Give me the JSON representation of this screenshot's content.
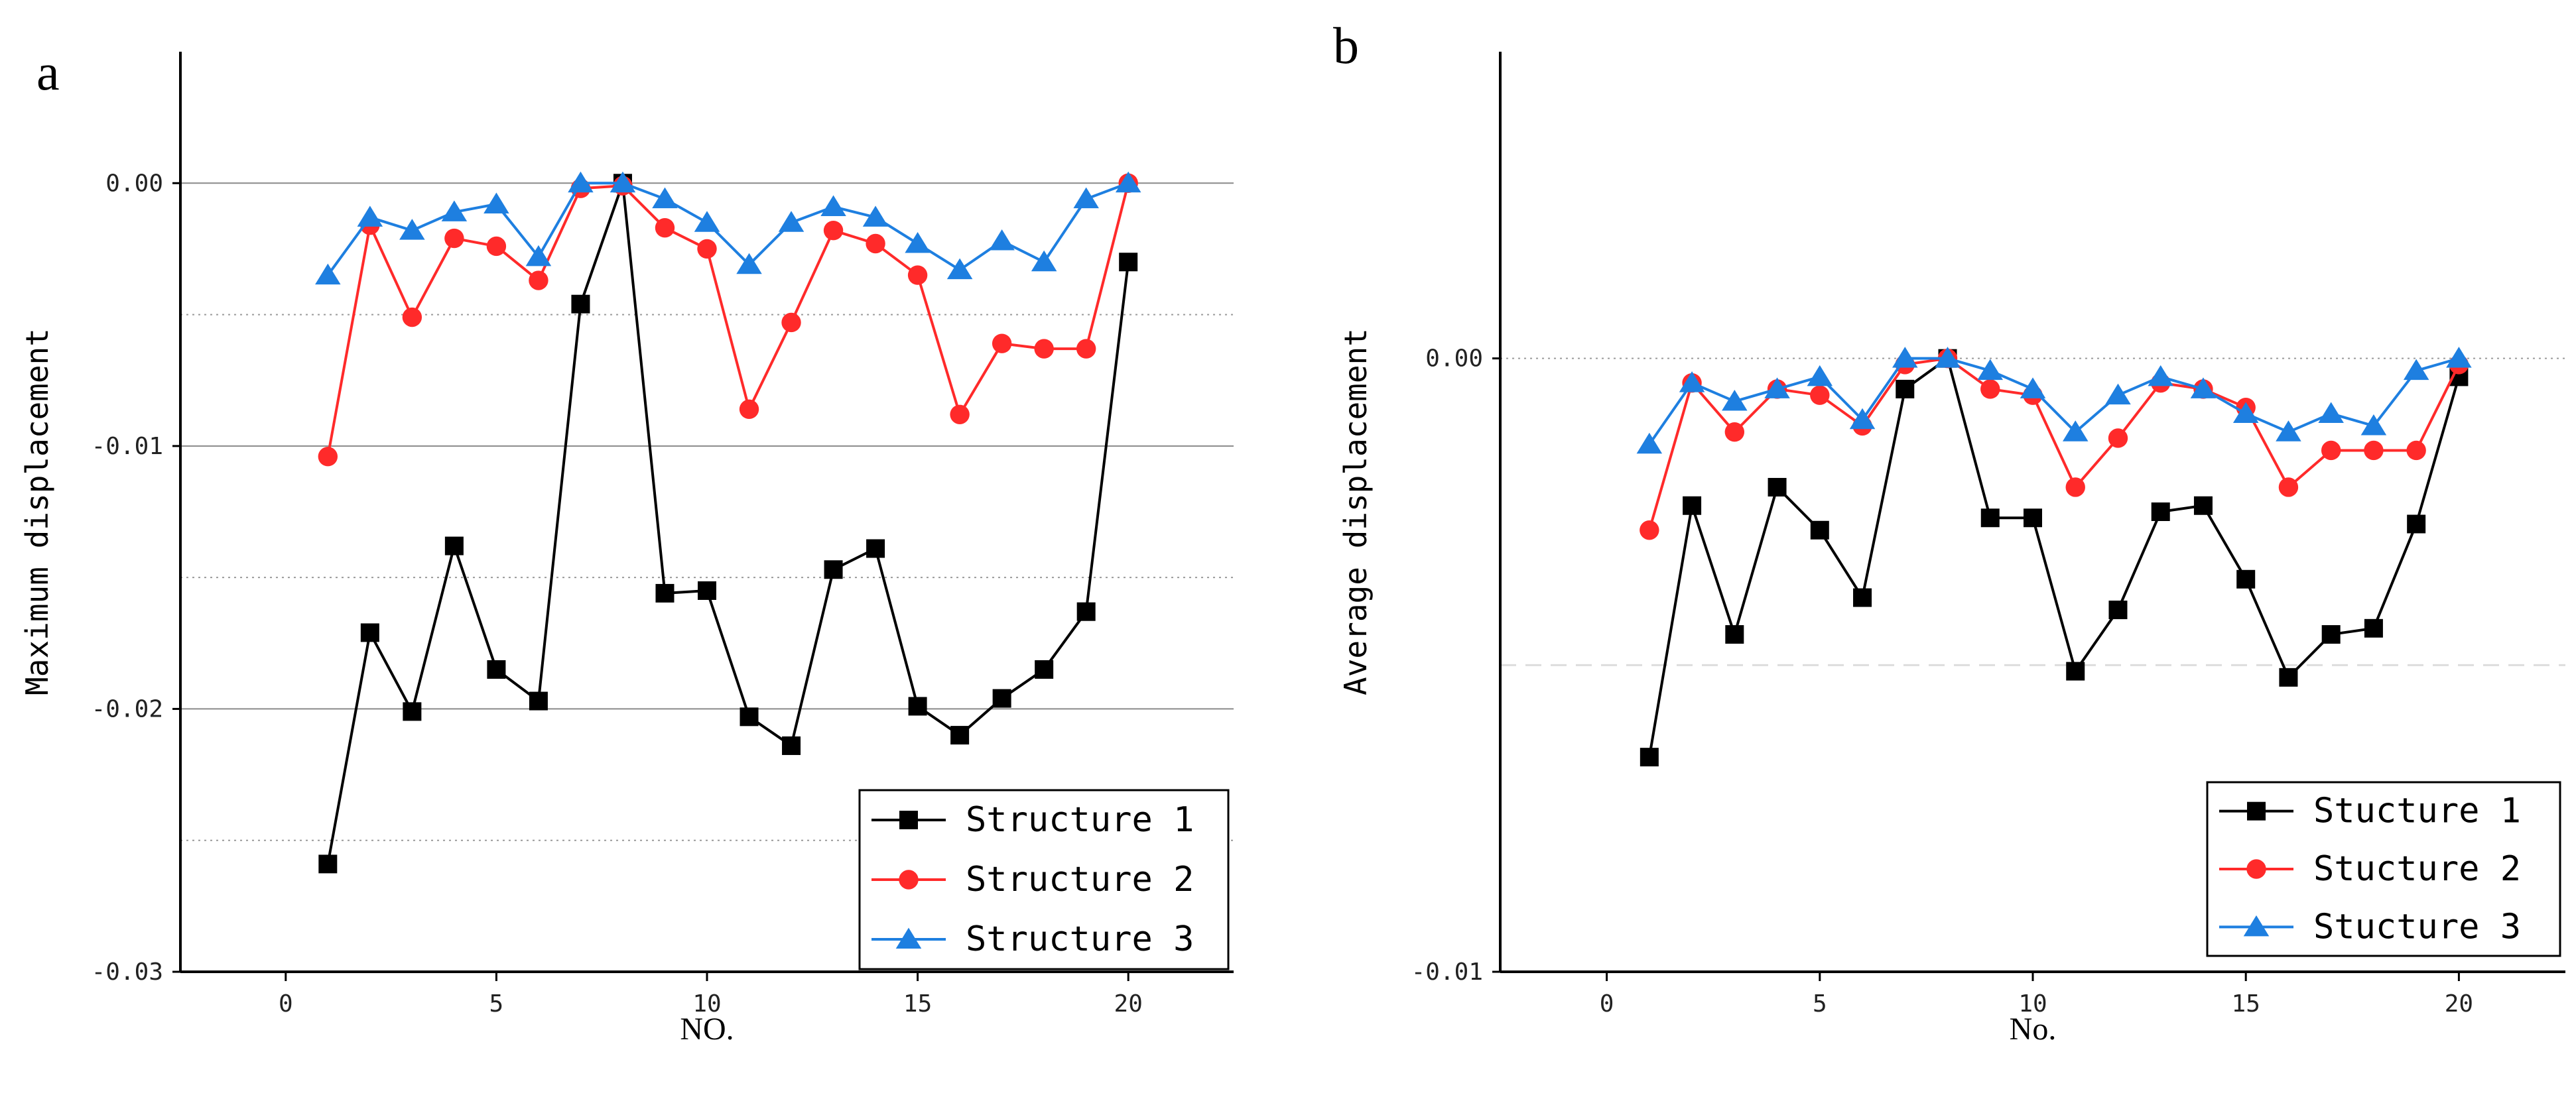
{
  "chart_data": [
    {
      "id": "a",
      "panel_label": "a",
      "type": "line",
      "xlabel": "NO.",
      "ylabel": "Maximum displacement",
      "xlim": [
        -2.5,
        22.5
      ],
      "ylim": [
        -0.03,
        0.005
      ],
      "xticks": [
        0,
        5,
        10,
        15,
        20
      ],
      "yticks": [
        -0.03,
        -0.02,
        -0.01,
        0.0
      ],
      "ytick_labels": [
        "-0.03",
        "-0.02",
        "-0.01",
        "0.00"
      ],
      "grid_solid": [
        0.0,
        -0.01,
        -0.02
      ],
      "grid_dotted": [
        -0.005,
        -0.015,
        -0.025
      ],
      "legend_position": "bottom-right",
      "x": [
        1,
        2,
        3,
        4,
        5,
        6,
        7,
        8,
        9,
        10,
        11,
        12,
        13,
        14,
        15,
        16,
        17,
        18,
        19,
        20
      ],
      "series": [
        {
          "name": "Structure 1",
          "color": "#000000",
          "marker": "square",
          "values": [
            -0.0259,
            -0.0171,
            -0.0201,
            -0.0138,
            -0.0185,
            -0.0197,
            -0.0046,
            0.0,
            -0.0156,
            -0.0155,
            -0.0203,
            -0.0214,
            -0.0147,
            -0.0139,
            -0.0199,
            -0.021,
            -0.0196,
            -0.0185,
            -0.0163,
            -0.003
          ]
        },
        {
          "name": "Structure 2",
          "color": "#ff2a2a",
          "marker": "circle",
          "values": [
            -0.0104,
            -0.0016,
            -0.0051,
            -0.0021,
            -0.0024,
            -0.0037,
            -0.0002,
            -0.0001,
            -0.0017,
            -0.0025,
            -0.0086,
            -0.0053,
            -0.0018,
            -0.0023,
            -0.0035,
            -0.0088,
            -0.0061,
            -0.0063,
            -0.0063,
            0.0
          ]
        },
        {
          "name": "Structure 3",
          "color": "#1e7fe0",
          "marker": "triangle",
          "values": [
            -0.0035,
            -0.0013,
            -0.0018,
            -0.0011,
            -0.0008,
            -0.0028,
            0.0,
            0.0,
            -0.0006,
            -0.0015,
            -0.0031,
            -0.0015,
            -0.0009,
            -0.0013,
            -0.0023,
            -0.0033,
            -0.0022,
            -0.003,
            -0.0006,
            0.0
          ]
        }
      ]
    },
    {
      "id": "b",
      "panel_label": "b",
      "type": "line",
      "xlabel": "No.",
      "ylabel": "Average displacement",
      "xlim": [
        -2.5,
        22.5
      ],
      "ylim": [
        -0.01,
        0.005
      ],
      "xticks": [
        0,
        5,
        10,
        15,
        20
      ],
      "yticks": [
        -0.01,
        0.0
      ],
      "ytick_labels": [
        "-0.01",
        "0.00"
      ],
      "grid_dotted": [
        0.0
      ],
      "grid_dashed_light": [
        -0.005
      ],
      "legend_position": "bottom-right",
      "x": [
        1,
        2,
        3,
        4,
        5,
        6,
        7,
        8,
        9,
        10,
        11,
        12,
        13,
        14,
        15,
        16,
        17,
        18,
        19,
        20
      ],
      "series": [
        {
          "name": "Stucture 1",
          "color": "#000000",
          "marker": "square",
          "values": [
            -0.0065,
            -0.0024,
            -0.0045,
            -0.0021,
            -0.0028,
            -0.0039,
            -0.0005,
            0.0,
            -0.0026,
            -0.0026,
            -0.0051,
            -0.0041,
            -0.0025,
            -0.0024,
            -0.0036,
            -0.0052,
            -0.0045,
            -0.0044,
            -0.0027,
            -0.0003
          ]
        },
        {
          "name": "Stucture 2",
          "color": "#ff2a2a",
          "marker": "circle",
          "values": [
            -0.0028,
            -0.0004,
            -0.0012,
            -0.0005,
            -0.0006,
            -0.0011,
            -0.0001,
            0.0,
            -0.0005,
            -0.0006,
            -0.0021,
            -0.0013,
            -0.0004,
            -0.0005,
            -0.0008,
            -0.0021,
            -0.0015,
            -0.0015,
            -0.0015,
            -0.0001
          ]
        },
        {
          "name": "Stucture 3",
          "color": "#1e7fe0",
          "marker": "triangle",
          "values": [
            -0.0014,
            -0.0004,
            -0.0007,
            -0.0005,
            -0.0003,
            -0.001,
            0.0,
            0.0,
            -0.0002,
            -0.0005,
            -0.0012,
            -0.0006,
            -0.0003,
            -0.0005,
            -0.0009,
            -0.0012,
            -0.0009,
            -0.0011,
            -0.0002,
            0.0
          ]
        }
      ]
    }
  ]
}
